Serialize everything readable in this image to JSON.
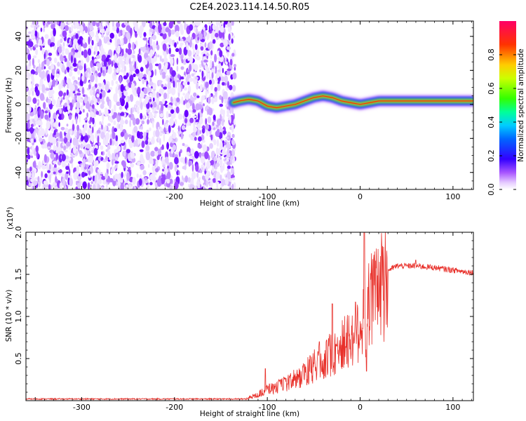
{
  "title": "C2E4.2023.114.14.50.R05",
  "chart_data": [
    {
      "type": "heatmap",
      "xlabel": "Height of straight line (km)",
      "ylabel": "Frequency (Hz)",
      "xlim": [
        -360,
        122
      ],
      "ylim": [
        -50,
        49
      ],
      "xticks": [
        -300,
        -200,
        -100,
        0,
        100
      ],
      "yticks": [
        -40,
        -20,
        0,
        20,
        40
      ],
      "noise_region_x": [
        -360,
        -137
      ],
      "noise_color": "#7a1fff",
      "signal_trace": {
        "x": [
          -137,
          -130,
          -120,
          -110,
          -100,
          -90,
          -80,
          -70,
          -60,
          -50,
          -40,
          -30,
          -20,
          -10,
          0,
          10,
          20,
          40,
          60,
          80,
          100,
          122
        ],
        "y": [
          1,
          2,
          3,
          2,
          -1,
          -2,
          -1,
          0,
          2,
          4,
          5,
          4,
          2,
          1,
          0,
          1,
          2,
          2,
          2,
          2,
          2,
          2
        ]
      },
      "colorbar": {
        "label": "Normalized spectral amplitude",
        "range": [
          0,
          1
        ],
        "ticks": [
          "0.0",
          "0.2",
          "0.4",
          "0.6",
          "0.8"
        ],
        "ticks_values": [
          0.0,
          0.2,
          0.4,
          0.6,
          0.8
        ]
      }
    },
    {
      "type": "line",
      "xlabel": "Height of straight line (km)",
      "ylabel": "SNR (10 * v/v)",
      "scale_label": "(x10",
      "scale_exp": "4",
      "scale_close": ")",
      "xlim": [
        -360,
        122
      ],
      "ylim": [
        0,
        2.0
      ],
      "xticks": [
        -300,
        -200,
        -100,
        0,
        100
      ],
      "yticks": [
        "0.5",
        "1.0",
        "1.5",
        "2.0"
      ],
      "yticks_values": [
        0.5,
        1.0,
        1.5,
        2.0
      ],
      "color": "#e8302a",
      "series": [
        {
          "x": [
            -360,
            -125,
            -110,
            -100,
            -90,
            -80,
            -70,
            -60,
            -50,
            -40,
            -30,
            -20,
            -10,
            0,
            4,
            6,
            8,
            10,
            20,
            30,
            40,
            60,
            80,
            100,
            122
          ],
          "y": [
            0.02,
            0.02,
            0.08,
            0.15,
            0.18,
            0.22,
            0.28,
            0.35,
            0.45,
            0.55,
            0.62,
            0.72,
            0.82,
            1.0,
            1.2,
            0.9,
            1.2,
            1.35,
            1.45,
            1.55,
            1.6,
            1.6,
            1.58,
            1.55,
            1.52
          ]
        }
      ]
    }
  ]
}
